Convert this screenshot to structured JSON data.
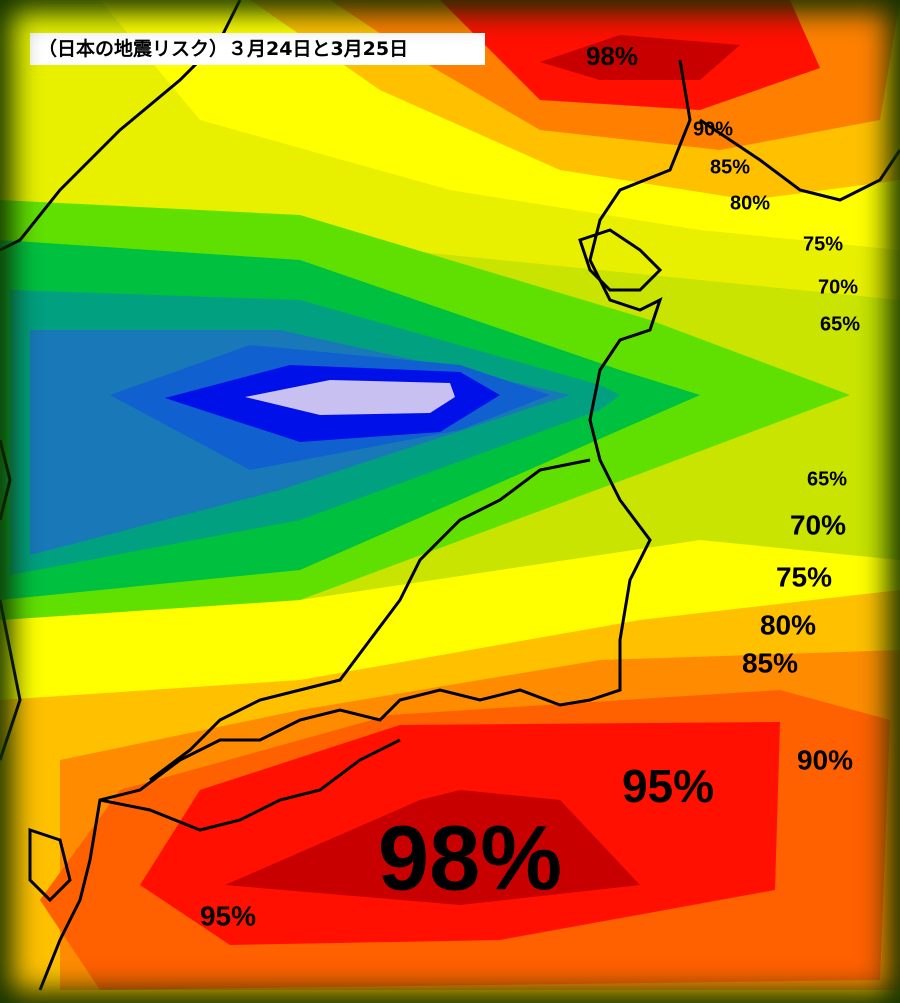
{
  "header": {
    "title": "（日本の地震リスク）３月24日と3月25日"
  },
  "labels": [
    "98%",
    "90%",
    "85%",
    "80%",
    "75%",
    "70%",
    "65%",
    "65%",
    "70%",
    "75%",
    "80%",
    "85%",
    "90%",
    "95%",
    "98%",
    "95%"
  ]
}
